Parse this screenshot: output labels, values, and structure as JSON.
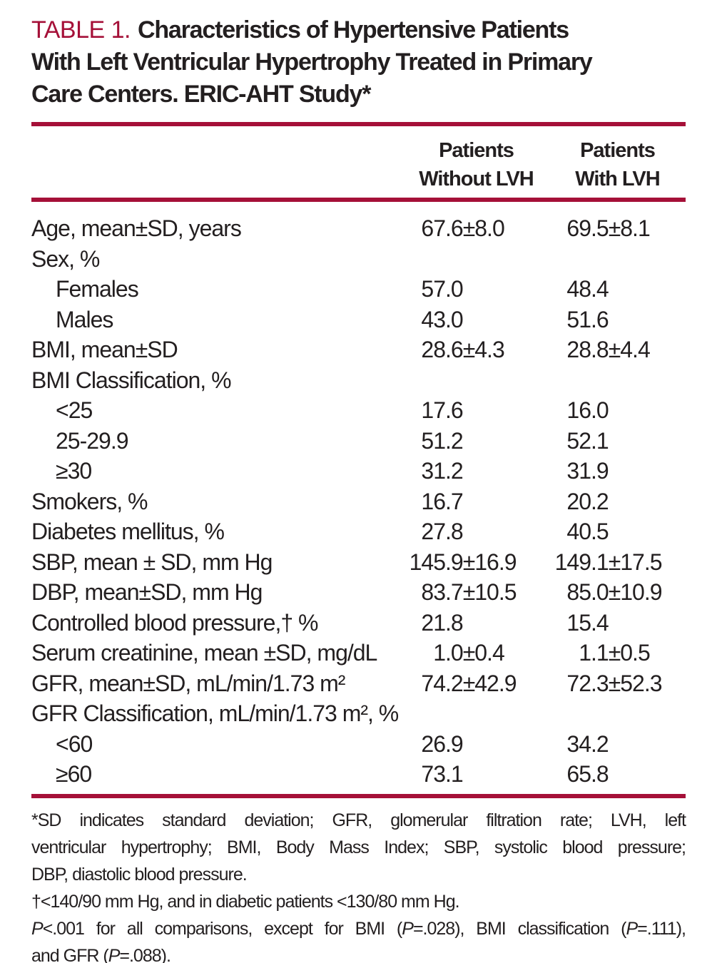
{
  "colors": {
    "accent_rule_and_label": "#A51038",
    "text": "#231F20",
    "background": "#FFFFFF"
  },
  "title": {
    "number": "TABLE 1.",
    "lines": [
      "Characteristics of Hypertensive Patients",
      "With Left Ventricular Hypertrophy Treated in Primary",
      "Care Centers. ERIC-AHT Study*"
    ]
  },
  "columns": [
    {
      "line1": "Patients",
      "line2": "Without LVH"
    },
    {
      "line1": "Patients",
      "line2": "With LVH"
    }
  ],
  "rows": [
    {
      "label": "Age, mean±SD, years",
      "col1": "67.6±8.0",
      "col2": "69.5±8.1"
    },
    {
      "label": "Sex, %",
      "col1": "",
      "col2": ""
    },
    {
      "label": "Females",
      "indent": true,
      "col1": "57.0",
      "col2": "48.4"
    },
    {
      "label": "Males",
      "indent": true,
      "col1": "43.0",
      "col2": "51.6"
    },
    {
      "label": "BMI, mean±SD",
      "col1": "28.6±4.3",
      "col2": "28.8±4.4"
    },
    {
      "label": "BMI Classification, %",
      "col1": "",
      "col2": ""
    },
    {
      "label": "<25",
      "indent": true,
      "col1": "17.6",
      "col2": "16.0"
    },
    {
      "label": "25-29.9",
      "indent": true,
      "col1": "51.2",
      "col2": "52.1"
    },
    {
      "label": "≥30",
      "indent": true,
      "col1": "31.2",
      "col2": "31.9"
    },
    {
      "label": "Smokers, %",
      "col1": "16.7",
      "col2": "20.2"
    },
    {
      "label": "Diabetes mellitus, %",
      "col1": "27.8",
      "col2": "40.5"
    },
    {
      "label": "SBP, mean ± SD, mm Hg",
      "col1": "145.9±16.9",
      "col2": "149.1±17.5"
    },
    {
      "label": "DBP, mean±SD, mm Hg",
      "col1": "83.7±10.5",
      "col2": "85.0±10.9"
    },
    {
      "label": "Controlled blood pressure,† %",
      "col1": "21.8",
      "col2": "15.4"
    },
    {
      "label": "Serum creatinine, mean ±SD, mg/dL",
      "col1": "1.0±0.4",
      "col2": "1.1±0.5"
    },
    {
      "label": "GFR, mean±SD, mL/min/1.73 m²",
      "col1": "74.2±42.9",
      "col2": "72.3±52.3"
    },
    {
      "label": "GFR Classification, mL/min/1.73 m², %",
      "col1": "",
      "col2": ""
    },
    {
      "label": "<60",
      "indent": true,
      "col1": "26.9",
      "col2": "34.2"
    },
    {
      "label": "≥60",
      "indent": true,
      "col1": "73.1",
      "col2": "65.8"
    }
  ],
  "footnotes": {
    "abbrev_lines": [
      "*SD indicates standard deviation; GFR, glomerular filtration rate; LVH, left",
      "ventricular hypertrophy; BMI, Body Mass Index; SBP, systolic blood pressure;",
      "DBP, diastolic blood pressure."
    ],
    "dagger_line": "†<140/90 mm Hg, and in diabetic patients <130/80 mm Hg.",
    "pvalue_lines": [
      [
        {
          "text": "P",
          "italic": true
        },
        {
          "text": "<.001 for all comparisons, except for BMI ("
        },
        {
          "text": "P",
          "italic": true
        },
        {
          "text": "=.028), BMI classification ("
        },
        {
          "text": "P",
          "italic": true
        },
        {
          "text": "=.111),"
        }
      ],
      [
        {
          "text": "and GFR ("
        },
        {
          "text": "P",
          "italic": true
        },
        {
          "text": "=.088)."
        }
      ]
    ]
  }
}
